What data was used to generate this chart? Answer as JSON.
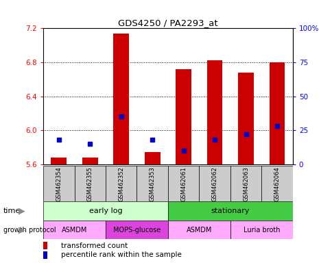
{
  "title": "GDS4250 / PA2293_at",
  "samples": [
    "GSM462354",
    "GSM462355",
    "GSM462352",
    "GSM462353",
    "GSM462061",
    "GSM462062",
    "GSM462063",
    "GSM462064"
  ],
  "transformed_count": [
    5.68,
    5.68,
    7.13,
    5.75,
    6.72,
    6.82,
    6.68,
    6.8
  ],
  "percentile_rank": [
    18,
    15,
    35,
    18,
    10,
    18,
    22,
    28
  ],
  "ylim_left": [
    5.6,
    7.2
  ],
  "ylim_right": [
    0,
    100
  ],
  "yticks_left": [
    5.6,
    6.0,
    6.4,
    6.8,
    7.2
  ],
  "yticks_right": [
    0,
    25,
    50,
    75,
    100
  ],
  "ytick_labels_right": [
    "0",
    "25",
    "50",
    "75",
    "100%"
  ],
  "bar_color": "#cc0000",
  "percentile_color": "#0000cc",
  "bar_bottom": 5.6,
  "dotted_lines": [
    6.0,
    6.4,
    6.8
  ],
  "time_groups": [
    {
      "label": "early log",
      "start": 0,
      "end": 4,
      "color": "#ccffcc"
    },
    {
      "label": "stationary",
      "start": 4,
      "end": 8,
      "color": "#44cc44"
    }
  ],
  "protocol_groups": [
    {
      "label": "ASMDM",
      "start": 0,
      "end": 2,
      "color": "#ffaaff"
    },
    {
      "label": "MOPS-glucose",
      "start": 2,
      "end": 4,
      "color": "#dd44dd"
    },
    {
      "label": "ASMDM",
      "start": 4,
      "end": 6,
      "color": "#ffaaff"
    },
    {
      "label": "Luria broth",
      "start": 6,
      "end": 8,
      "color": "#ffaaff"
    }
  ],
  "legend_red_label": "transformed count",
  "legend_blue_label": "percentile rank within the sample",
  "xlabel_time": "time",
  "xlabel_protocol": "growth protocol",
  "sample_box_color": "#cccccc",
  "fig_width": 4.85,
  "fig_height": 3.84,
  "dpi": 100
}
